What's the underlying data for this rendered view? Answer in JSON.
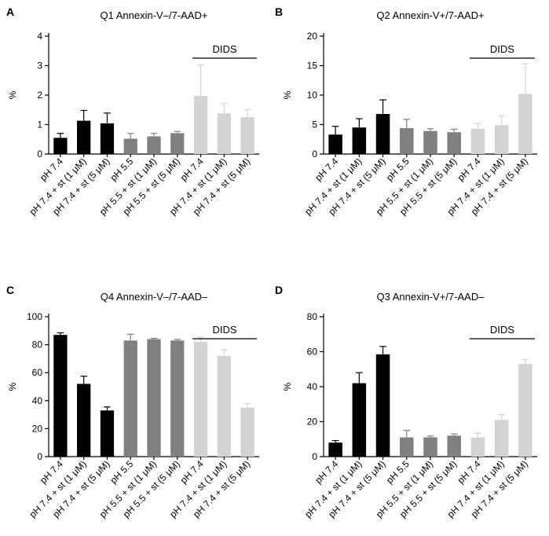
{
  "figure": {
    "categories": [
      "pH 7.4",
      "pH 7.4 + st (1 μM)",
      "pH 7.4 + st (5 μM)",
      "pH 5.5",
      "pH 5.5 + st (1 μM)",
      "pH 5.5 + st (5 μM)",
      "pH 7.4",
      "pH 7.4 + st (1 μM)",
      "pH 7.4 + st (5 μM)"
    ],
    "colors": {
      "group1": "#000000",
      "group2": "#808080",
      "group3": "#d3d3d3",
      "axis": "#000000"
    },
    "dids_label": "DIDS"
  },
  "chart_data": [
    {
      "panel": "A",
      "type": "bar",
      "title": "Q1 Annexin-V–/7-AAD+",
      "ylabel": "%",
      "xlabel": "",
      "ylim": [
        0,
        4
      ],
      "yticks": [
        0,
        1,
        2,
        3,
        4
      ],
      "values": [
        0.55,
        1.13,
        1.04,
        0.52,
        0.6,
        0.71,
        1.97,
        1.38,
        1.25
      ],
      "errors": [
        0.15,
        0.35,
        0.35,
        0.18,
        0.1,
        0.06,
        1.05,
        0.33,
        0.25
      ],
      "groups": [
        1,
        1,
        1,
        2,
        2,
        2,
        3,
        3,
        3
      ]
    },
    {
      "panel": "B",
      "type": "bar",
      "title": "Q2 Annexin-V+/7-AAD+",
      "ylabel": "%",
      "xlabel": "",
      "ylim": [
        0,
        20
      ],
      "yticks": [
        0,
        5,
        10,
        15,
        20
      ],
      "values": [
        3.3,
        4.5,
        6.8,
        4.4,
        3.9,
        3.7,
        4.3,
        4.9,
        10.2
      ],
      "errors": [
        1.4,
        1.5,
        2.4,
        1.5,
        0.4,
        0.5,
        0.9,
        1.6,
        5.1
      ],
      "groups": [
        1,
        1,
        1,
        2,
        2,
        2,
        3,
        3,
        3
      ]
    },
    {
      "panel": "C",
      "type": "bar",
      "title": "Q4 Annexin-V–/7-AAD–",
      "ylabel": "%",
      "xlabel": "",
      "ylim": [
        0,
        100
      ],
      "yticks": [
        0,
        20,
        40,
        60,
        80,
        100
      ],
      "values": [
        87,
        52,
        33,
        83,
        84,
        83,
        82,
        72,
        35
      ],
      "errors": [
        1.5,
        5.5,
        2.5,
        4.5,
        0.6,
        0.8,
        3.5,
        4.5,
        3
      ],
      "groups": [
        1,
        1,
        1,
        2,
        2,
        2,
        3,
        3,
        3
      ]
    },
    {
      "panel": "D",
      "type": "bar",
      "title": "Q3 Annexin-V+/7-AAD–",
      "ylabel": "%",
      "xlabel": "",
      "ylim": [
        0,
        80
      ],
      "yticks": [
        0,
        20,
        40,
        60,
        80
      ],
      "values": [
        8,
        42,
        58.5,
        11,
        11,
        12,
        11,
        21,
        53
      ],
      "errors": [
        1.2,
        6,
        4.5,
        4,
        0.8,
        1,
        2.5,
        3,
        2.5
      ],
      "groups": [
        1,
        1,
        1,
        2,
        2,
        2,
        3,
        3,
        3
      ]
    }
  ]
}
